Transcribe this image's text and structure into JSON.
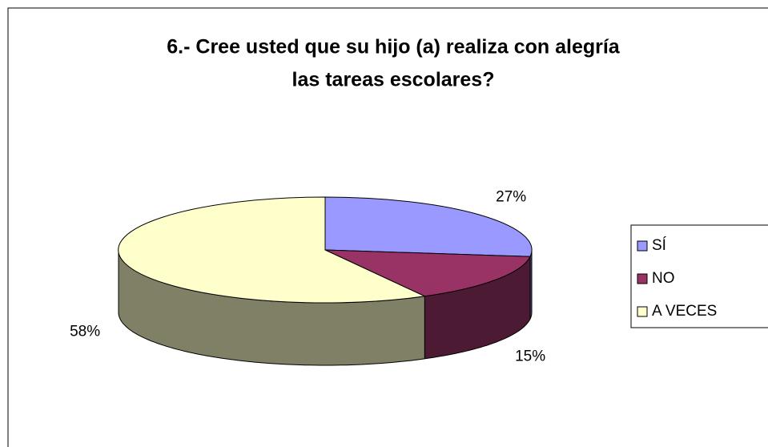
{
  "chart_data": {
    "type": "pie3d",
    "title": [
      "6.- Cree usted que su hijo (a) realiza con alegría",
      "las tareas escolares?"
    ],
    "categories": [
      "SÍ",
      "NO",
      "A VECES"
    ],
    "values": [
      27,
      15,
      58
    ],
    "value_labels": [
      "27%",
      "15%",
      "58%"
    ],
    "colors": [
      "#9999ff",
      "#993366",
      "#ffffcc"
    ],
    "legend": "right"
  }
}
